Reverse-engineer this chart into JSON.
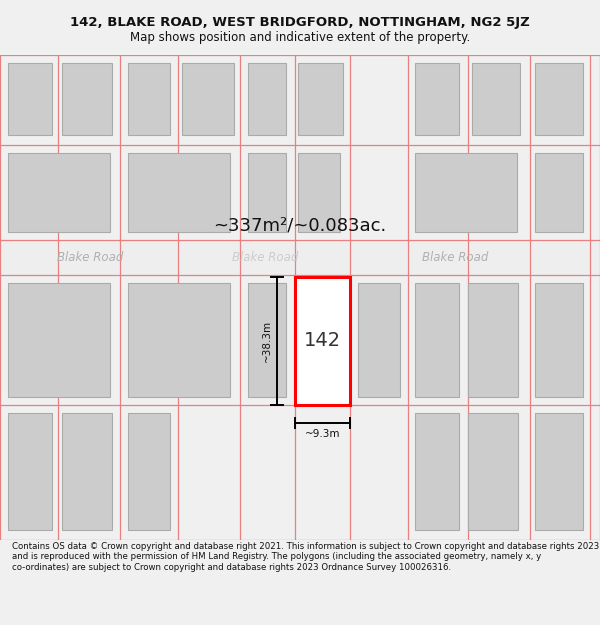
{
  "title_line1": "142, BLAKE ROAD, WEST BRIDGFORD, NOTTINGHAM, NG2 5JZ",
  "title_line2": "Map shows position and indicative extent of the property.",
  "area_text": "~337m²/~0.083ac.",
  "street_name": "Blake Road",
  "property_number": "142",
  "dim_height": "~38.3m",
  "dim_width": "~9.3m",
  "copyright_text": "Contains OS data © Crown copyright and database right 2021. This information is subject to Crown copyright and database rights 2023 and is reproduced with the permission of HM Land Registry. The polygons (including the associated geometry, namely x, y co-ordinates) are subject to Crown copyright and database rights 2023 Ordnance Survey 100026316.",
  "bg_color": "#f0f0f0",
  "map_bg": "#ffffff",
  "grid_line_color": "#e88080",
  "building_color": "#cccccc",
  "building_edge_color": "#aaaaaa",
  "highlight_color": "#ff0000",
  "street_bg_color": "#eeeeee",
  "street_text_color": "#b0b0b0",
  "title_fontsize": 9.5,
  "subtitle_fontsize": 8.5,
  "area_fontsize": 13,
  "copyright_fontsize": 6.2,
  "street_label_fontsize": 8.5,
  "prop_label_fontsize": 14,
  "dim_fontsize": 7.5
}
